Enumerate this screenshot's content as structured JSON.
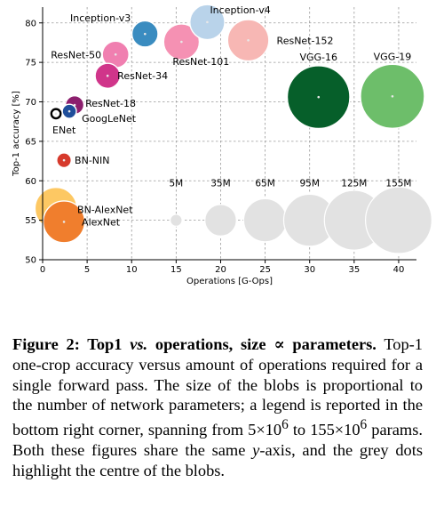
{
  "chart_data": {
    "type": "scatter",
    "xlabel": "Operations [G-Ops]",
    "ylabel": "Top-1 accuracy [%]",
    "xlim": [
      0,
      42
    ],
    "ylim": [
      50,
      82
    ],
    "xticks": [
      "0",
      "5",
      "10",
      "15",
      "20",
      "25",
      "30",
      "35",
      "40"
    ],
    "yticks": [
      "50",
      "55",
      "60",
      "65",
      "70",
      "75",
      "80"
    ],
    "grid": true,
    "points": [
      {
        "name": "Inception-v4",
        "x": 18.5,
        "y": 80.1,
        "params_m": 43,
        "color": "#b9d3ea"
      },
      {
        "name": "Inception-v3",
        "x": 11.5,
        "y": 78.6,
        "params_m": 24,
        "color": "#3a8cc0"
      },
      {
        "name": "ResNet-152",
        "x": 23.1,
        "y": 77.8,
        "params_m": 60,
        "color": "#f7b7b4"
      },
      {
        "name": "ResNet-101",
        "x": 15.6,
        "y": 77.6,
        "params_m": 45,
        "color": "#f591b3"
      },
      {
        "name": "ResNet-50",
        "x": 8.2,
        "y": 76.0,
        "params_m": 25,
        "color": "#f07fb0"
      },
      {
        "name": "ResNet-34",
        "x": 7.3,
        "y": 73.3,
        "params_m": 22,
        "color": "#d0358a"
      },
      {
        "name": "VGG-16",
        "x": 31.0,
        "y": 70.6,
        "params_m": 138,
        "color": "#065f2a"
      },
      {
        "name": "VGG-19",
        "x": 39.3,
        "y": 70.7,
        "params_m": 144,
        "color": "#6dbe6a"
      },
      {
        "name": "ResNet-18",
        "x": 3.6,
        "y": 69.6,
        "params_m": 12,
        "color": "#8c1f6e"
      },
      {
        "name": "ENet",
        "x": 1.5,
        "y": 68.5,
        "params_m": 0.4,
        "color": "#000000"
      },
      {
        "name": "GoogLeNet",
        "x": 3.0,
        "y": 68.8,
        "params_m": 7,
        "color": "#1f4e9a"
      },
      {
        "name": "BN-NIN",
        "x": 2.4,
        "y": 62.6,
        "params_m": 7.5,
        "color": "#d63a2c"
      },
      {
        "name": "BN-AlexNet",
        "x": 1.5,
        "y": 56.5,
        "params_m": 62,
        "color": "#fdc863"
      },
      {
        "name": "AlexNet",
        "x": 2.4,
        "y": 54.8,
        "params_m": 61,
        "color": "#f07e2d"
      }
    ],
    "size_legend": [
      {
        "label": "5M",
        "params_m": 5,
        "x": 15.0
      },
      {
        "label": "35M",
        "params_m": 35,
        "x": 20.0
      },
      {
        "label": "65M",
        "params_m": 65,
        "x": 25.0
      },
      {
        "label": "95M",
        "params_m": 95,
        "x": 30.0
      },
      {
        "label": "125M",
        "params_m": 125,
        "x": 35.0
      },
      {
        "label": "155M",
        "params_m": 155,
        "x": 40.0
      }
    ],
    "size_legend_y": 55,
    "legend_color": "#e2e2e2"
  },
  "caption": {
    "lead": "Figure 2: ",
    "bold1": "Top1 ",
    "bold_italic": "vs.",
    "bold2": " operations, size ∝ parameters.",
    "line1": "Top-1 one-crop accuracy versus amount of operations required for a single forward pass.  The size of the blobs is proportional to the number of network parameters; a legend is reported in the bottom right corner, spanning from 5×10",
    "sup1": "6",
    "line2": " to 155×10",
    "sup2": "6",
    "line3": " params. Both these figures share the same ",
    "italic_y": "y",
    "line4": "-axis, and the grey dots highlight the centre of the blobs."
  }
}
